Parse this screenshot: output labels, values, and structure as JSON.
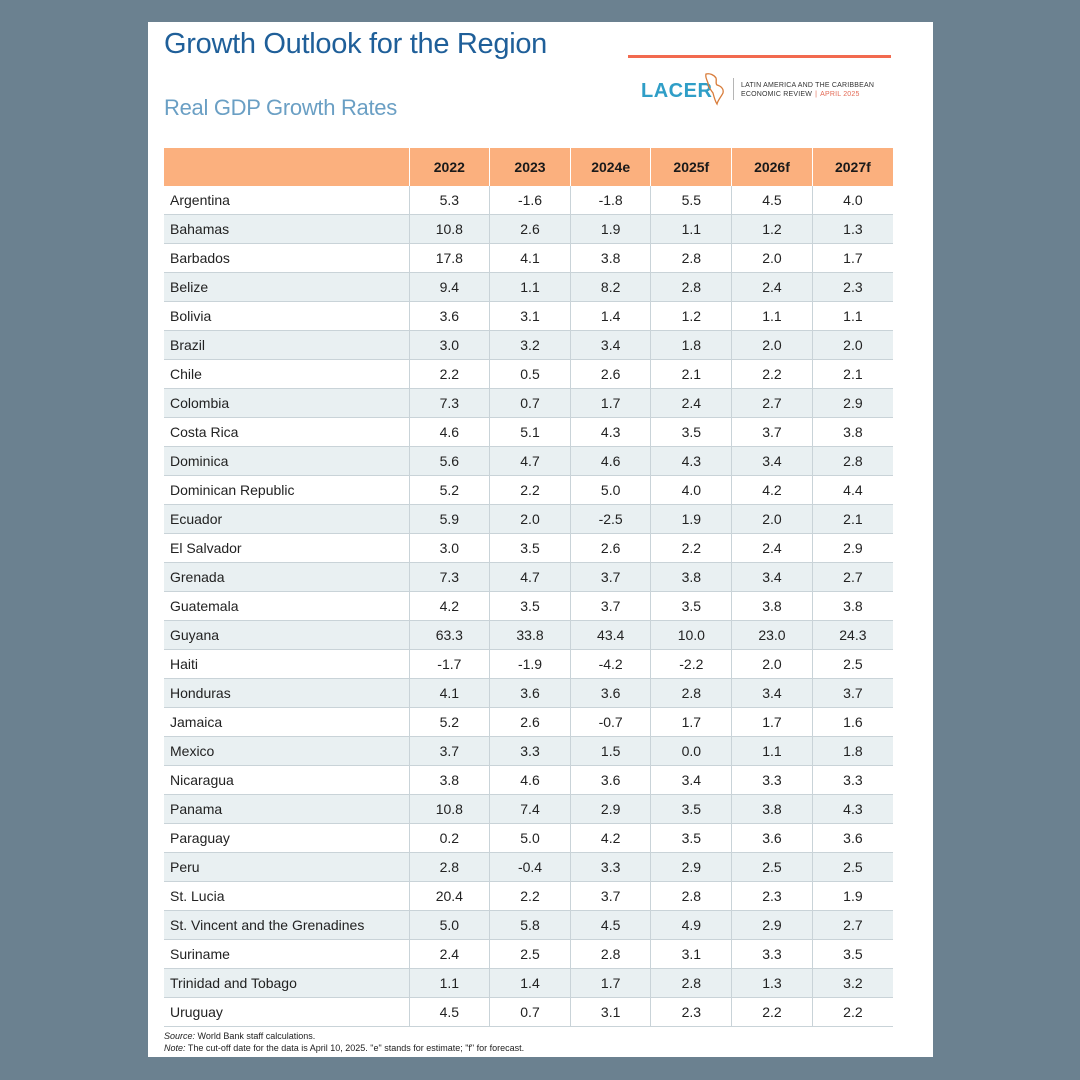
{
  "title": "Growth Outlook for the Region",
  "subtitle": "Real GDP Growth Rates",
  "logo": {
    "word": "LACER",
    "line1": "LATIN AMERICA AND THE CARIBBEAN",
    "line2": "ECONOMIC REVIEW",
    "separator": "|",
    "date": "APRIL 2025"
  },
  "table": {
    "headers": [
      "",
      "2022",
      "2023",
      "2024e",
      "2025f",
      "2026f",
      "2027f"
    ],
    "rows": [
      [
        "Argentina",
        "5.3",
        "-1.6",
        "-1.8",
        "5.5",
        "4.5",
        "4.0"
      ],
      [
        "Bahamas",
        "10.8",
        "2.6",
        "1.9",
        "1.1",
        "1.2",
        "1.3"
      ],
      [
        "Barbados",
        "17.8",
        "4.1",
        "3.8",
        "2.8",
        "2.0",
        "1.7"
      ],
      [
        "Belize",
        "9.4",
        "1.1",
        "8.2",
        "2.8",
        "2.4",
        "2.3"
      ],
      [
        "Bolivia",
        "3.6",
        "3.1",
        "1.4",
        "1.2",
        "1.1",
        "1.1"
      ],
      [
        "Brazil",
        "3.0",
        "3.2",
        "3.4",
        "1.8",
        "2.0",
        "2.0"
      ],
      [
        "Chile",
        "2.2",
        "0.5",
        "2.6",
        "2.1",
        "2.2",
        "2.1"
      ],
      [
        "Colombia",
        "7.3",
        "0.7",
        "1.7",
        "2.4",
        "2.7",
        "2.9"
      ],
      [
        "Costa Rica",
        "4.6",
        "5.1",
        "4.3",
        "3.5",
        "3.7",
        "3.8"
      ],
      [
        "Dominica",
        "5.6",
        "4.7",
        "4.6",
        "4.3",
        "3.4",
        "2.8"
      ],
      [
        "Dominican Republic",
        "5.2",
        "2.2",
        "5.0",
        "4.0",
        "4.2",
        "4.4"
      ],
      [
        "Ecuador",
        "5.9",
        "2.0",
        "-2.5",
        "1.9",
        "2.0",
        "2.1"
      ],
      [
        "El Salvador",
        "3.0",
        "3.5",
        "2.6",
        "2.2",
        "2.4",
        "2.9"
      ],
      [
        "Grenada",
        "7.3",
        "4.7",
        "3.7",
        "3.8",
        "3.4",
        "2.7"
      ],
      [
        "Guatemala",
        "4.2",
        "3.5",
        "3.7",
        "3.5",
        "3.8",
        "3.8"
      ],
      [
        "Guyana",
        "63.3",
        "33.8",
        "43.4",
        "10.0",
        "23.0",
        "24.3"
      ],
      [
        "Haiti",
        "-1.7",
        "-1.9",
        "-4.2",
        "-2.2",
        "2.0",
        "2.5"
      ],
      [
        "Honduras",
        "4.1",
        "3.6",
        "3.6",
        "2.8",
        "3.4",
        "3.7"
      ],
      [
        "Jamaica",
        "5.2",
        "2.6",
        "-0.7",
        "1.7",
        "1.7",
        "1.6"
      ],
      [
        "Mexico",
        "3.7",
        "3.3",
        "1.5",
        "0.0",
        "1.1",
        "1.8"
      ],
      [
        "Nicaragua",
        "3.8",
        "4.6",
        "3.6",
        "3.4",
        "3.3",
        "3.3"
      ],
      [
        "Panama",
        "10.8",
        "7.4",
        "2.9",
        "3.5",
        "3.8",
        "4.3"
      ],
      [
        "Paraguay",
        "0.2",
        "5.0",
        "4.2",
        "3.5",
        "3.6",
        "3.6"
      ],
      [
        "Peru",
        "2.8",
        "-0.4",
        "3.3",
        "2.9",
        "2.5",
        "2.5"
      ],
      [
        "St. Lucia",
        "20.4",
        "2.2",
        "3.7",
        "2.8",
        "2.3",
        "1.9"
      ],
      [
        "St. Vincent and the Grenadines",
        "5.0",
        "5.8",
        "4.5",
        "4.9",
        "2.9",
        "2.7"
      ],
      [
        "Suriname",
        "2.4",
        "2.5",
        "2.8",
        "3.1",
        "3.3",
        "3.5"
      ],
      [
        "Trinidad and Tobago",
        "1.1",
        "1.4",
        "1.7",
        "2.8",
        "1.3",
        "3.2"
      ],
      [
        "Uruguay",
        "4.5",
        "0.7",
        "3.1",
        "2.3",
        "2.2",
        "2.2"
      ]
    ]
  },
  "footnote": {
    "source_label": "Source:",
    "source_text": " World Bank staff calculations.",
    "note_label": "Note:",
    "note_text": " The cut-off date for the data is April 10, 2025. \"e\" stands for estimate; \"f\" for forecast."
  },
  "colors": {
    "background": "#6b8190",
    "title": "#1f5f99",
    "subtitle": "#6a9fc4",
    "header_fill": "#fbb07e",
    "accent_rule": "#f26a4f",
    "stripe": "#e9f0f2"
  }
}
